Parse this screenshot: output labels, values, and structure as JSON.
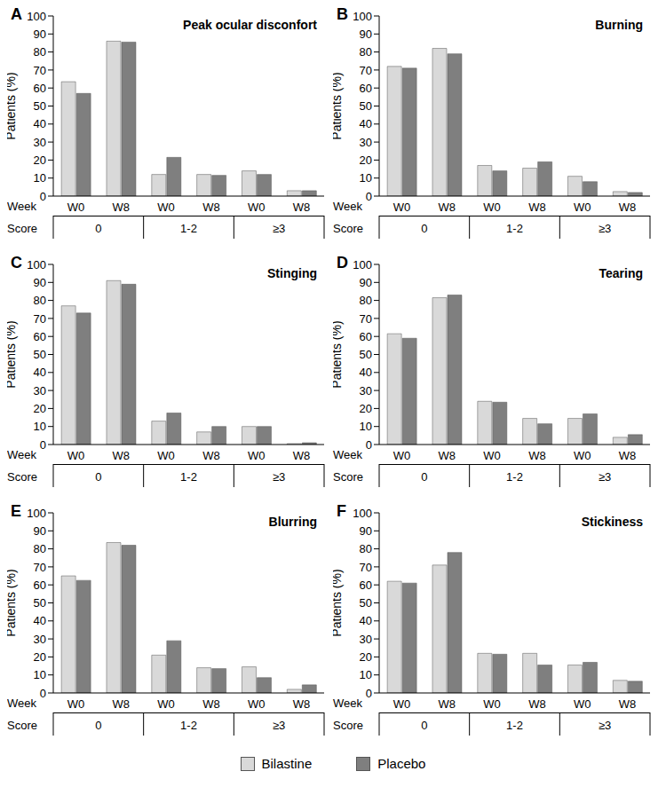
{
  "chart_data": [
    {
      "type": "bar",
      "panel": "A",
      "title": "Peak ocular disconfort",
      "y_label": "Patients (%)",
      "x_label": "Week",
      "group_label": "Score",
      "groups": [
        "0",
        "1-2",
        "≥3"
      ],
      "categories": [
        "W0",
        "W8",
        "W0",
        "W8",
        "W0",
        "W8"
      ],
      "series": [
        {
          "name": "Bilastine",
          "color": "#d9d9d9",
          "values": [
            63.5,
            86,
            12,
            12,
            14,
            3
          ]
        },
        {
          "name": "Placebo",
          "color": "#7f7f7f",
          "values": [
            57,
            85.5,
            21.5,
            11.5,
            12,
            3
          ]
        }
      ],
      "ylim": [
        0,
        100
      ],
      "yticks": [
        0,
        10,
        20,
        30,
        40,
        50,
        60,
        70,
        80,
        90,
        100
      ],
      "grid": false,
      "legend": "bottom"
    },
    {
      "type": "bar",
      "panel": "B",
      "title": "Burning",
      "y_label": "Patients (%)",
      "x_label": "Week",
      "group_label": "Score",
      "groups": [
        "0",
        "1-2",
        "≥3"
      ],
      "categories": [
        "W0",
        "W8",
        "W0",
        "W8",
        "W0",
        "W8"
      ],
      "series": [
        {
          "name": "Bilastine",
          "color": "#d9d9d9",
          "values": [
            72,
            82,
            17,
            15.5,
            11,
            2.5
          ]
        },
        {
          "name": "Placebo",
          "color": "#7f7f7f",
          "values": [
            71,
            79,
            14,
            19,
            8,
            2
          ]
        }
      ],
      "ylim": [
        0,
        100
      ],
      "yticks": [
        0,
        10,
        20,
        30,
        40,
        50,
        60,
        70,
        80,
        90,
        100
      ],
      "grid": false,
      "legend": "bottom"
    },
    {
      "type": "bar",
      "panel": "C",
      "title": "Stinging",
      "y_label": "Patients (%)",
      "x_label": "Week",
      "group_label": "Score",
      "groups": [
        "0",
        "1-2",
        "≥3"
      ],
      "categories": [
        "W0",
        "W8",
        "W0",
        "W8",
        "W0",
        "W8"
      ],
      "series": [
        {
          "name": "Bilastine",
          "color": "#d9d9d9",
          "values": [
            77,
            91,
            13,
            7,
            10,
            0.5
          ]
        },
        {
          "name": "Placebo",
          "color": "#7f7f7f",
          "values": [
            73,
            89,
            17.5,
            10,
            10,
            1
          ]
        }
      ],
      "ylim": [
        0,
        100
      ],
      "yticks": [
        0,
        10,
        20,
        30,
        40,
        50,
        60,
        70,
        80,
        90,
        100
      ],
      "grid": false,
      "legend": "bottom"
    },
    {
      "type": "bar",
      "panel": "D",
      "title": "Tearing",
      "y_label": "Patients (%)",
      "x_label": "Week",
      "group_label": "Score",
      "groups": [
        "0",
        "1-2",
        "≥3"
      ],
      "categories": [
        "W0",
        "W8",
        "W0",
        "W8",
        "W0",
        "W8"
      ],
      "series": [
        {
          "name": "Bilastine",
          "color": "#d9d9d9",
          "values": [
            61.5,
            81.5,
            24,
            14.5,
            14.5,
            4
          ]
        },
        {
          "name": "Placebo",
          "color": "#7f7f7f",
          "values": [
            59,
            83,
            23.5,
            11.5,
            17,
            5.5
          ]
        }
      ],
      "ylim": [
        0,
        100
      ],
      "yticks": [
        0,
        10,
        20,
        30,
        40,
        50,
        60,
        70,
        80,
        90,
        100
      ],
      "grid": false,
      "legend": "bottom"
    },
    {
      "type": "bar",
      "panel": "E",
      "title": "Blurring",
      "y_label": "Patients (%)",
      "x_label": "Week",
      "group_label": "Score",
      "groups": [
        "0",
        "1-2",
        "≥3"
      ],
      "categories": [
        "W0",
        "W8",
        "W0",
        "W8",
        "W0",
        "W8"
      ],
      "series": [
        {
          "name": "Bilastine",
          "color": "#d9d9d9",
          "values": [
            65,
            83.5,
            21,
            14,
            14.5,
            2
          ]
        },
        {
          "name": "Placebo",
          "color": "#7f7f7f",
          "values": [
            62.5,
            82,
            29,
            13.5,
            8.5,
            4.5
          ]
        }
      ],
      "ylim": [
        0,
        100
      ],
      "yticks": [
        0,
        10,
        20,
        30,
        40,
        50,
        60,
        70,
        80,
        90,
        100
      ],
      "grid": false,
      "legend": "bottom"
    },
    {
      "type": "bar",
      "panel": "F",
      "title": "Stickiness",
      "y_label": "Patients (%)",
      "x_label": "Week",
      "group_label": "Score",
      "groups": [
        "0",
        "1-2",
        "≥3"
      ],
      "categories": [
        "W0",
        "W8",
        "W0",
        "W8",
        "W0",
        "W8"
      ],
      "series": [
        {
          "name": "Bilastine",
          "color": "#d9d9d9",
          "values": [
            62,
            71,
            22,
            22,
            15.5,
            7
          ]
        },
        {
          "name": "Placebo",
          "color": "#7f7f7f",
          "values": [
            61,
            78,
            21.5,
            15.5,
            17,
            6.5
          ]
        }
      ],
      "ylim": [
        0,
        100
      ],
      "yticks": [
        0,
        10,
        20,
        30,
        40,
        50,
        60,
        70,
        80,
        90,
        100
      ],
      "grid": false,
      "legend": "bottom"
    }
  ]
}
